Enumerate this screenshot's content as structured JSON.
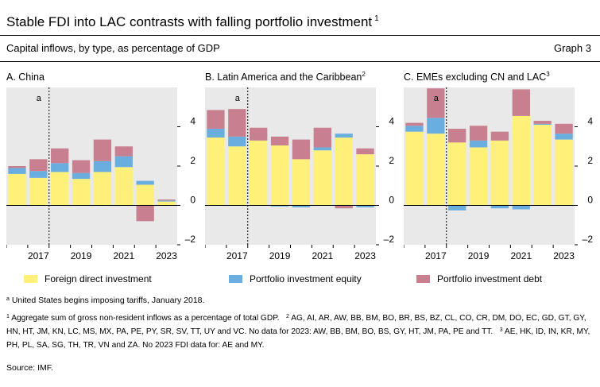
{
  "title": "Stable FDI into LAC contrasts with falling portfolio investment",
  "title_sup": "1",
  "subtitle": "Capital inflows, by type, as percentage of GDP",
  "graph_number": "Graph 3",
  "legend": [
    {
      "label": "Foreign direct investment",
      "color": "#fff07a"
    },
    {
      "label": "Portfolio investment equity",
      "color": "#6aaee0"
    },
    {
      "label": "Portfolio investment debt",
      "color": "#c87f8f"
    }
  ],
  "note_a": {
    "marker": "a",
    "text": "United States begins imposing tariffs, January 2018."
  },
  "footnotes": {
    "fn1": {
      "marker": "1",
      "text": "Aggregate sum of gross non-resident inflows as a percentage of total GDP."
    },
    "fn2": {
      "marker": "2",
      "text": "AG, AI, AR, AW, BB, BM, BO, BR, BS, BZ, CL, CO, CR, DM, DO, EC, GD, GT, GY, HN, HT, JM, KN, LC, MS, MX, PA, PE, PY, SR, SV, TT, UY and VC. No data for 2023: AW, BB, BM, BO, BS, GY, HT, JM, PA, PE and TT."
    },
    "fn3": {
      "marker": "3",
      "text": "AE, HK, ID, IN, KR, MY, PH, PL, SA, SG, TH, TR, VN and ZA. No 2023 FDI data for: AE and MY."
    }
  },
  "source": "Source: IMF.",
  "chart_data": [
    {
      "type": "bar",
      "stacked": true,
      "title": "A. China",
      "title_sup": "",
      "x": [
        2016,
        2017,
        2018,
        2019,
        2020,
        2021,
        2022,
        2023
      ],
      "x_ticks": [
        "2017",
        "2019",
        "2021",
        "2023"
      ],
      "y_ticks": [
        "–2",
        "0",
        "2",
        "4"
      ],
      "ylim": [
        -2,
        6
      ],
      "axis_side": "right",
      "annotation": {
        "label": "a",
        "x": 2018.0
      },
      "series": [
        {
          "name": "Foreign direct investment",
          "values": [
            1.6,
            1.4,
            1.7,
            1.35,
            1.7,
            1.95,
            1.05,
            0.2
          ]
        },
        {
          "name": "Portfolio investment equity",
          "values": [
            0.3,
            0.35,
            0.45,
            0.3,
            0.55,
            0.55,
            0.2,
            0.05
          ]
        },
        {
          "name": "Portfolio investment debt",
          "values": [
            0.1,
            0.6,
            0.75,
            0.65,
            1.1,
            0.5,
            -0.8,
            0.05
          ]
        }
      ]
    },
    {
      "type": "bar",
      "stacked": true,
      "title": "B.  Latin America and the Caribbean",
      "title_sup": "2",
      "x": [
        2016,
        2017,
        2018,
        2019,
        2020,
        2021,
        2022,
        2023
      ],
      "x_ticks": [
        "2017",
        "2019",
        "2021",
        "2023"
      ],
      "y_ticks": [
        "–2",
        "0",
        "2",
        "4"
      ],
      "ylim": [
        -2,
        6
      ],
      "axis_side": "right",
      "annotation": {
        "label": "a",
        "x": 2018.0
      },
      "series": [
        {
          "name": "Foreign direct investment",
          "values": [
            3.45,
            3.0,
            3.3,
            3.05,
            2.35,
            2.8,
            3.45,
            2.6
          ]
        },
        {
          "name": "Portfolio investment equity",
          "values": [
            0.45,
            0.5,
            0.0,
            -0.05,
            -0.1,
            0.15,
            0.2,
            -0.1
          ]
        },
        {
          "name": "Portfolio investment debt",
          "values": [
            0.95,
            1.4,
            0.65,
            0.45,
            1.0,
            1.0,
            -0.15,
            0.3
          ]
        }
      ]
    },
    {
      "type": "bar",
      "stacked": true,
      "title": "C.  EMEs excluding CN and LAC",
      "title_sup": "3",
      "x": [
        2016,
        2017,
        2018,
        2019,
        2020,
        2021,
        2022,
        2023
      ],
      "x_ticks": [
        "2017",
        "2019",
        "2021",
        "2023"
      ],
      "y_ticks": [
        "–2",
        "0",
        "2",
        "4"
      ],
      "ylim": [
        -2,
        6
      ],
      "axis_side": "right",
      "annotation": {
        "label": "a",
        "x": 2018.0
      },
      "series": [
        {
          "name": "Foreign direct investment",
          "values": [
            3.75,
            3.65,
            3.2,
            2.95,
            3.3,
            4.55,
            4.1,
            3.35
          ]
        },
        {
          "name": "Portfolio investment equity",
          "values": [
            0.3,
            0.8,
            -0.25,
            0.35,
            -0.15,
            -0.2,
            0.05,
            0.3
          ]
        },
        {
          "name": "Portfolio investment debt",
          "values": [
            0.15,
            1.5,
            0.7,
            0.75,
            0.45,
            1.35,
            0.15,
            0.5
          ]
        }
      ]
    }
  ]
}
